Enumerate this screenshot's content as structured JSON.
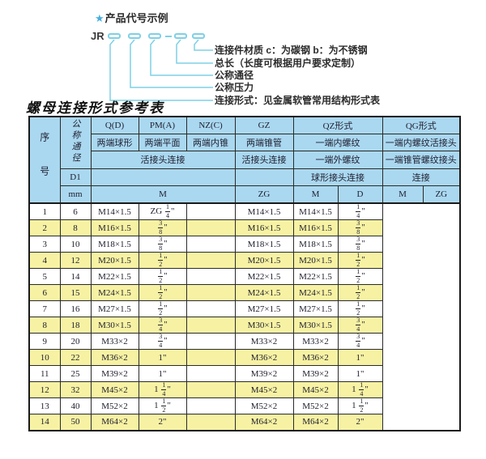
{
  "colors": {
    "header_bg": "#aad8f0",
    "row_alt": "#f7f2a3",
    "line": "#7fd0e6",
    "star": "#45aede",
    "border": "#2a2a2a"
  },
  "diagram": {
    "star": "★",
    "title": "产品代号示例",
    "code_prefix": "JR",
    "labels": [
      "连接件材质 c：为碳钢 b：为不锈钢",
      "总长（长度可根据用户要求定制）",
      "公称通径",
      "公称压力",
      "连接形式：见金属软管常用结构形式表"
    ]
  },
  "table_title": "螺母连接形式参考表",
  "table": {
    "header": {
      "seq": "序号",
      "nominal_diameter": "公称通径",
      "q_d": "Q(D)",
      "pm_a": "PM(A)",
      "nz_c": "NZ(C)",
      "gz": "GZ",
      "qz": "QZ形式",
      "qg": "QG形式",
      "ball_ends": "两端球形",
      "flat_ends": "两端平面",
      "cone_ends": "两端内锥",
      "taper_ends": "两端锥管",
      "one_end_female": "一端内螺纹",
      "one_end_female_union": "一端内螺纹活接头",
      "union_conn_a": "活接头连接",
      "union_conn_b": "活接头连接",
      "one_end_male": "一端外螺纹",
      "one_end_taper_joint": "一端锥管螺纹接头",
      "d1": "D1",
      "ball_joint_conn": "球形接头连接",
      "conn": "连接",
      "mm": "mm",
      "m1": "M",
      "zg1": "ZG",
      "m2": "M",
      "d": "D",
      "m3": "M",
      "zg2": "ZG"
    },
    "body_columns": [
      "seq",
      "mm",
      "m",
      "zg",
      "qz-m",
      "qz-d",
      "qg-m",
      "qg-zg"
    ],
    "rows": [
      [
        "1",
        "6",
        "M14×1.5",
        "ZG 1/4\"",
        "",
        "M14×1.5",
        "M14×1.5",
        "1/4\""
      ],
      [
        "2",
        "8",
        "M16×1.5",
        "3/8\"",
        "",
        "M16×1.5",
        "M16×1.5",
        "3/8\""
      ],
      [
        "3",
        "10",
        "M18×1.5",
        "3/8\"",
        "",
        "M18×1.5",
        "M18×1.5",
        "3/8\""
      ],
      [
        "4",
        "12",
        "M20×1.5",
        "1/2\"",
        "",
        "M20×1.5",
        "M20×1.5",
        "1/2\""
      ],
      [
        "5",
        "14",
        "M22×1.5",
        "1/2\"",
        "",
        "M22×1.5",
        "M22×1.5",
        "1/2\""
      ],
      [
        "6",
        "15",
        "M24×1.5",
        "1/2\"",
        "",
        "M24×1.5",
        "M24×1.5",
        "1/2\""
      ],
      [
        "7",
        "16",
        "M27×1.5",
        "1/2\"",
        "",
        "M27×1.5",
        "M27×1.5",
        "1/2\""
      ],
      [
        "8",
        "18",
        "M30×1.5",
        "3/4\"",
        "",
        "M30×1.5",
        "M30×1.5",
        "3/4\""
      ],
      [
        "9",
        "20",
        "M33×2",
        "3/4\"",
        "",
        "M33×2",
        "M33×2",
        "3/4\""
      ],
      [
        "10",
        "22",
        "M36×2",
        "1\"",
        "",
        "M36×2",
        "M36×2",
        "1\""
      ],
      [
        "11",
        "25",
        "M39×2",
        "1\"",
        "",
        "M39×2",
        "M39×2",
        "1\""
      ],
      [
        "12",
        "32",
        "M45×2",
        "1 1/4\"",
        "",
        "M45×2",
        "M45×2",
        "1 1/4\""
      ],
      [
        "13",
        "40",
        "M52×2",
        "1 1/2\"",
        "",
        "M52×2",
        "M52×2",
        "1 1/2\""
      ],
      [
        "14",
        "50",
        "M64×2",
        "2\"",
        "",
        "M64×2",
        "M64×2",
        "2\""
      ]
    ]
  }
}
